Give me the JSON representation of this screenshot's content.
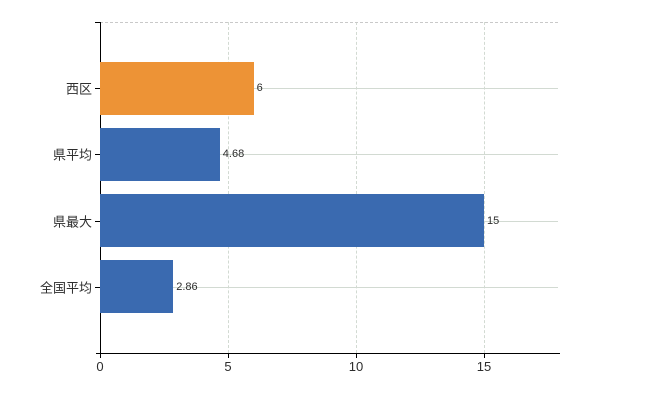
{
  "chart": {
    "background_color": "#ffffff",
    "axis_color": "#000000",
    "label_color": "#2d2d2d",
    "grid_color": "#d2dad2",
    "top_border_color": "#c9c9c9"
  },
  "chart_data": {
    "type": "bar",
    "orientation": "horizontal",
    "title": "",
    "xlabel": "",
    "ylabel": "",
    "legend": "none",
    "grid": "on",
    "categories": [
      "西区",
      "県平均",
      "県最大",
      "全国平均"
    ],
    "values": [
      6,
      4.68,
      15,
      2.86
    ],
    "value_labels": [
      "6",
      "4.68",
      "15",
      "2.86"
    ],
    "bar_colors": [
      "#ed9336",
      "#3a6ab0",
      "#3a6ab0",
      "#3a6ab0"
    ],
    "x_ticks": [
      0,
      5,
      10,
      15
    ],
    "x_tick_labels": [
      "0",
      "5",
      "10",
      "15"
    ],
    "xlim": [
      0,
      17.9
    ]
  }
}
